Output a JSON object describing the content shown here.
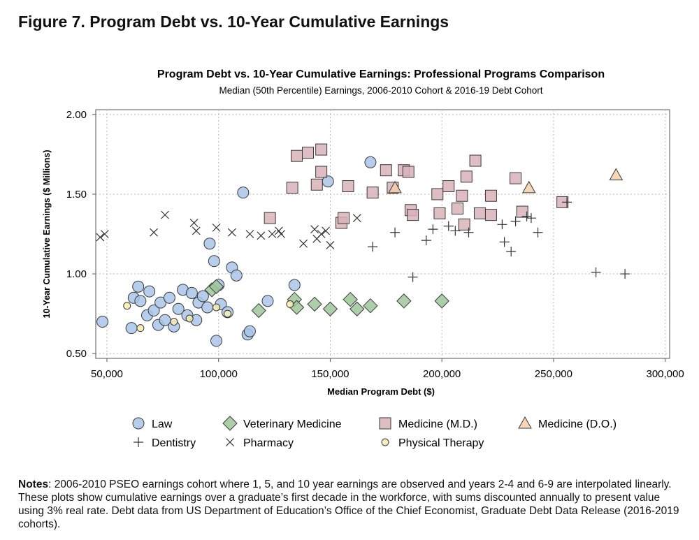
{
  "figure_title": "Figure 7. Program Debt vs. 10-Year Cumulative Earnings",
  "notes": {
    "label": "Notes",
    "text": ": 2006-2010 PSEO earnings cohort where 1, 5, and 10 year earnings are observed and years 2-4 and 6-9 are interpolated linearly. These plots show cumulative earnings over a graduate’s first decade in the workforce, with sums discounted annually to present value using 3% real rate. Debt data from US Department of Education’s Office of the Chief Economist, Graduate Debt Data Release (2016-2019 cohorts)."
  },
  "chart_data": {
    "type": "scatter",
    "title": "Program Debt vs. 10-Year Cumulative Earnings: Professional Programs Comparison",
    "subtitle": "Median (50th Percentile) Earnings, 2006-2010 Cohort & 2016-19 Debt Cohort",
    "xlabel": "Median Program Debt ($)",
    "ylabel": "10-Year Cumulative Earnings ($ Millions)",
    "xlim": [
      45000,
      302000
    ],
    "ylim": [
      0.47,
      2.03
    ],
    "xticks": [
      50000,
      100000,
      150000,
      200000,
      250000,
      300000
    ],
    "xtick_labels": [
      "50,000",
      "100,000",
      "150,000",
      "200,000",
      "250,000",
      "300,000"
    ],
    "yticks": [
      0.5,
      1.0,
      1.5,
      2.0
    ],
    "ytick_labels": [
      "0.50",
      "1.00",
      "1.50",
      "2.00"
    ],
    "grid": true,
    "series": [
      {
        "name": "Law",
        "marker": "circle",
        "color": "#a9c6e8",
        "points": [
          [
            48000,
            0.7
          ],
          [
            61000,
            0.66
          ],
          [
            62000,
            0.85
          ],
          [
            64000,
            0.92
          ],
          [
            65000,
            0.83
          ],
          [
            68000,
            0.74
          ],
          [
            69000,
            0.89
          ],
          [
            71000,
            0.77
          ],
          [
            73000,
            0.68
          ],
          [
            74000,
            0.82
          ],
          [
            76000,
            0.71
          ],
          [
            78000,
            0.85
          ],
          [
            80000,
            0.67
          ],
          [
            82000,
            0.78
          ],
          [
            84000,
            0.9
          ],
          [
            86000,
            0.74
          ],
          [
            88000,
            0.88
          ],
          [
            90000,
            0.71
          ],
          [
            91000,
            0.82
          ],
          [
            93000,
            0.86
          ],
          [
            95000,
            0.79
          ],
          [
            96000,
            1.19
          ],
          [
            98000,
            1.08
          ],
          [
            99000,
            0.58
          ],
          [
            100000,
            0.93
          ],
          [
            101000,
            0.81
          ],
          [
            104000,
            0.76
          ],
          [
            106000,
            1.04
          ],
          [
            108000,
            0.99
          ],
          [
            111000,
            1.51
          ],
          [
            113000,
            0.62
          ],
          [
            114000,
            0.64
          ],
          [
            122000,
            0.83
          ],
          [
            134000,
            0.93
          ],
          [
            149000,
            1.58
          ],
          [
            168000,
            1.7
          ]
        ]
      },
      {
        "name": "Veterinary Medicine",
        "marker": "diamond",
        "color": "#9dc59a",
        "points": [
          [
            97000,
            0.9
          ],
          [
            99000,
            0.92
          ],
          [
            118000,
            0.77
          ],
          [
            134000,
            0.84
          ],
          [
            135000,
            0.79
          ],
          [
            143000,
            0.81
          ],
          [
            150000,
            0.78
          ],
          [
            159000,
            0.84
          ],
          [
            162000,
            0.78
          ],
          [
            168000,
            0.8
          ],
          [
            183000,
            0.83
          ],
          [
            200000,
            0.83
          ]
        ]
      },
      {
        "name": "Medicine (M.D.)",
        "marker": "square",
        "color": "#d9b3b9",
        "points": [
          [
            123000,
            1.35
          ],
          [
            133000,
            1.54
          ],
          [
            135000,
            1.74
          ],
          [
            140000,
            1.76
          ],
          [
            144000,
            1.56
          ],
          [
            146000,
            1.64
          ],
          [
            146000,
            1.78
          ],
          [
            155000,
            1.32
          ],
          [
            156000,
            1.35
          ],
          [
            158000,
            1.55
          ],
          [
            169000,
            1.51
          ],
          [
            175000,
            1.65
          ],
          [
            178000,
            1.54
          ],
          [
            183000,
            1.65
          ],
          [
            185000,
            1.64
          ],
          [
            186000,
            1.4
          ],
          [
            187000,
            1.37
          ],
          [
            198000,
            1.5
          ],
          [
            199000,
            1.38
          ],
          [
            203000,
            1.55
          ],
          [
            207000,
            1.41
          ],
          [
            209000,
            1.49
          ],
          [
            210000,
            1.31
          ],
          [
            211000,
            1.61
          ],
          [
            215000,
            1.71
          ],
          [
            217000,
            1.38
          ],
          [
            222000,
            1.49
          ],
          [
            222000,
            1.37
          ],
          [
            233000,
            1.6
          ],
          [
            236000,
            1.39
          ],
          [
            254000,
            1.45
          ]
        ]
      },
      {
        "name": "Medicine (D.O.)",
        "marker": "triangle",
        "color": "#f5cfa8",
        "points": [
          [
            179000,
            1.54
          ],
          [
            239000,
            1.54
          ],
          [
            278000,
            1.62
          ]
        ]
      },
      {
        "name": "Dentistry",
        "marker": "plus",
        "color": "#333333",
        "points": [
          [
            169000,
            1.17
          ],
          [
            179000,
            1.26
          ],
          [
            187000,
            0.98
          ],
          [
            193000,
            1.21
          ],
          [
            196000,
            1.28
          ],
          [
            203000,
            1.3
          ],
          [
            206000,
            1.27
          ],
          [
            212000,
            1.26
          ],
          [
            227000,
            1.31
          ],
          [
            228000,
            1.2
          ],
          [
            231000,
            1.14
          ],
          [
            233000,
            1.33
          ],
          [
            238000,
            1.36
          ],
          [
            240000,
            1.35
          ],
          [
            243000,
            1.26
          ],
          [
            256000,
            1.45
          ],
          [
            269000,
            1.01
          ],
          [
            282000,
            1.0
          ]
        ]
      },
      {
        "name": "Pharmacy",
        "marker": "x",
        "color": "#333333",
        "points": [
          [
            47000,
            1.23
          ],
          [
            49000,
            1.25
          ],
          [
            71000,
            1.26
          ],
          [
            76000,
            1.37
          ],
          [
            89000,
            1.32
          ],
          [
            90000,
            1.27
          ],
          [
            99000,
            1.29
          ],
          [
            106000,
            1.26
          ],
          [
            114000,
            1.25
          ],
          [
            119000,
            1.24
          ],
          [
            124000,
            1.25
          ],
          [
            127000,
            1.27
          ],
          [
            128000,
            1.25
          ],
          [
            138000,
            1.19
          ],
          [
            143000,
            1.28
          ],
          [
            144000,
            1.22
          ],
          [
            146000,
            1.25
          ],
          [
            148000,
            1.27
          ],
          [
            150000,
            1.18
          ],
          [
            162000,
            1.35
          ]
        ]
      },
      {
        "name": "Physical Therapy",
        "marker": "circle-small",
        "color": "#f5ecb0",
        "points": [
          [
            59000,
            0.8
          ],
          [
            65000,
            0.66
          ],
          [
            80000,
            0.7
          ],
          [
            87000,
            0.72
          ],
          [
            99000,
            0.79
          ],
          [
            104000,
            0.75
          ],
          [
            132000,
            0.81
          ]
        ]
      }
    ]
  }
}
